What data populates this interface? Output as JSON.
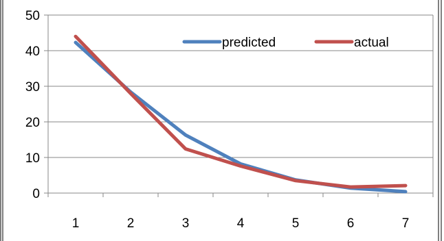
{
  "chart_data": {
    "type": "line",
    "title": "",
    "xlabel": "",
    "ylabel": "",
    "categories": [
      "1",
      "2",
      "3",
      "4",
      "5",
      "6",
      "7"
    ],
    "x": [
      1,
      2,
      3,
      4,
      5,
      6,
      7
    ],
    "ylim": [
      0,
      50
    ],
    "yticks": [
      "0",
      "10",
      "20",
      "30",
      "40",
      "50"
    ],
    "grid": true,
    "legend_position": "top-right",
    "series": [
      {
        "name": "predicted",
        "color": "#4F81BD",
        "values": [
          42.3,
          28.4,
          16.3,
          8.2,
          3.7,
          1.4,
          0.4
        ]
      },
      {
        "name": "actual",
        "color": "#C0504D",
        "values": [
          44.0,
          28.0,
          12.4,
          7.6,
          3.5,
          1.7,
          2.1
        ]
      }
    ]
  }
}
